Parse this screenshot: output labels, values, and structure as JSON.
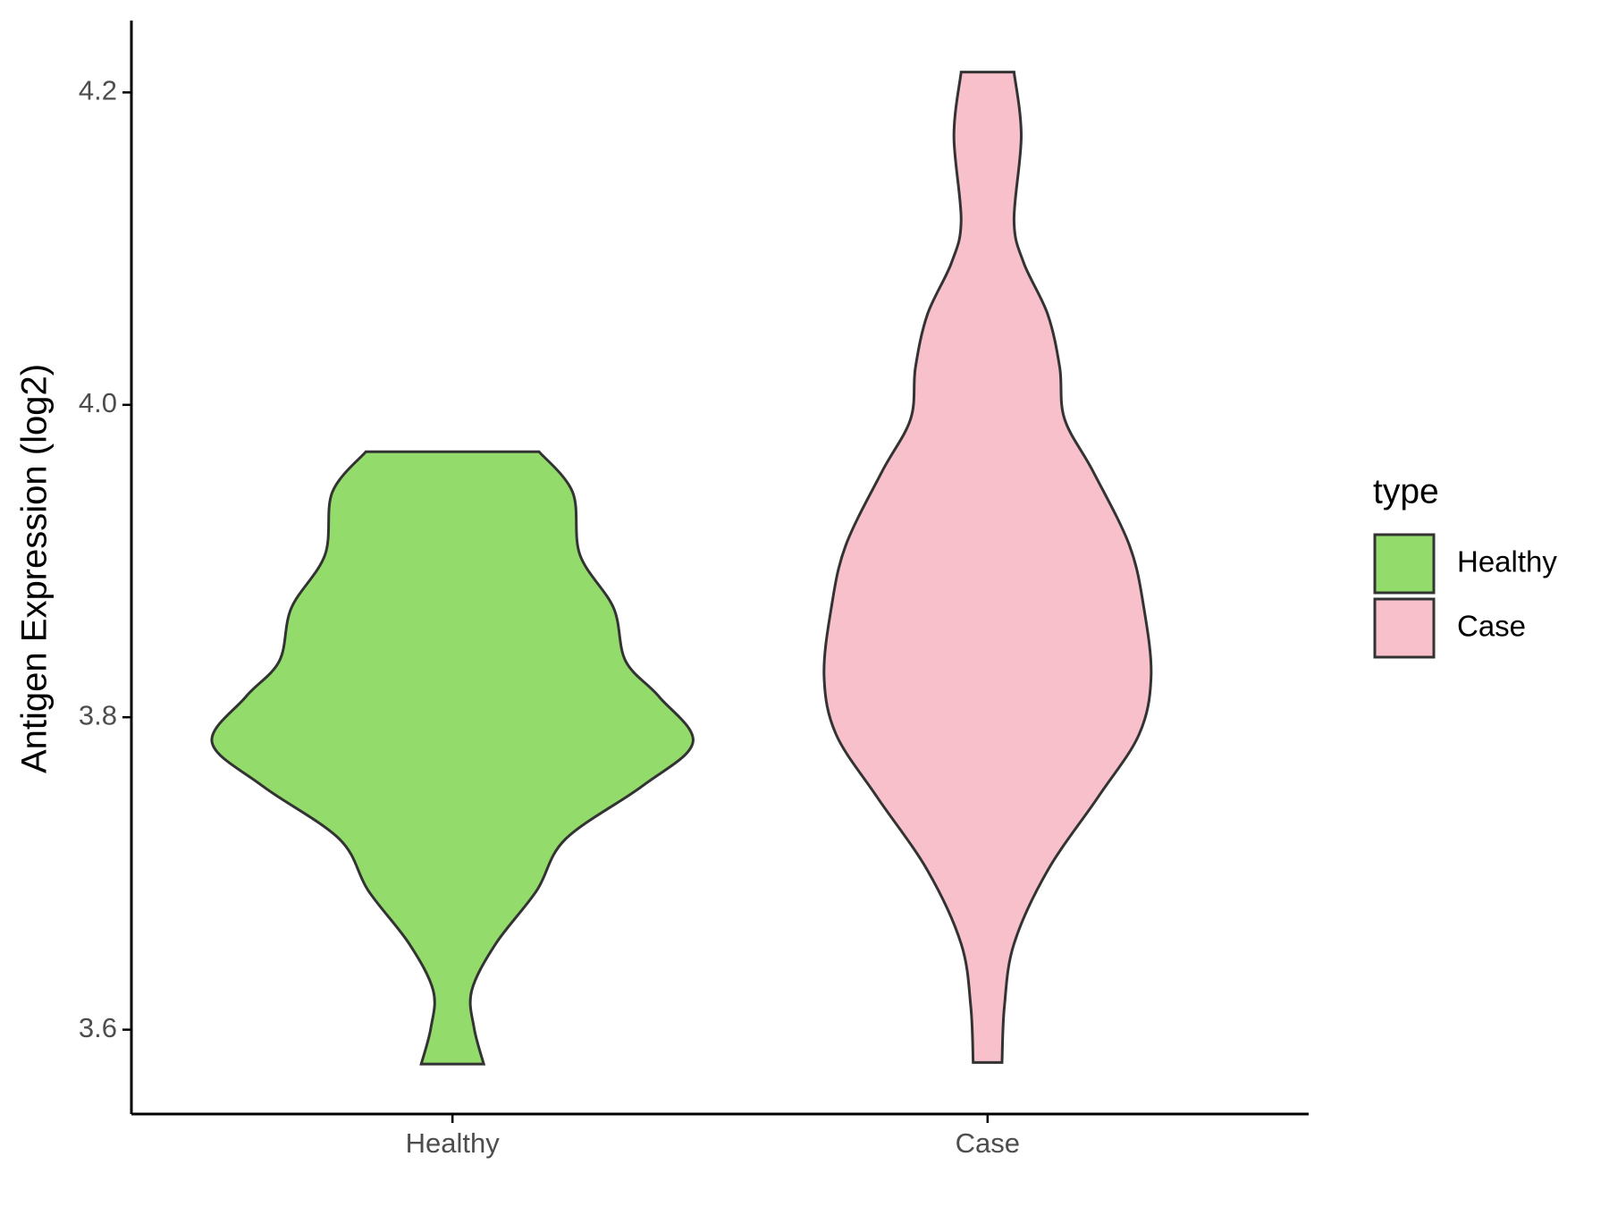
{
  "chart_data": {
    "type": "violin",
    "y_label": "Antigen Expression (log2)",
    "categories": [
      "Healthy",
      "Case"
    ],
    "series": [
      {
        "name": "Healthy",
        "color": "#93dc6c",
        "y": [
          3.97,
          3.944,
          3.904,
          3.87,
          3.836,
          3.813,
          3.784,
          3.756,
          3.722,
          3.689,
          3.655,
          3.625,
          3.601,
          3.578
        ],
        "width": [
          0.36,
          0.5,
          0.53,
          0.67,
          0.72,
          0.86,
          1.0,
          0.79,
          0.47,
          0.35,
          0.18,
          0.08,
          0.09,
          0.13
        ]
      },
      {
        "name": "Case",
        "color": "#f7c0cb",
        "y": [
          4.213,
          4.172,
          4.118,
          4.091,
          4.058,
          4.024,
          3.991,
          3.957,
          3.91,
          3.87,
          3.826,
          3.789,
          3.749,
          3.702,
          3.655,
          3.615,
          3.579
        ],
        "width": [
          0.11,
          0.14,
          0.11,
          0.15,
          0.25,
          0.3,
          0.32,
          0.44,
          0.59,
          0.65,
          0.68,
          0.63,
          0.46,
          0.25,
          0.11,
          0.07,
          0.06
        ]
      }
    ],
    "ylim": [
      3.546,
      4.246
    ],
    "yticks": [
      3.6,
      3.8,
      {
        "value": 4,
        "label": "4.0"
      },
      4.2
    ],
    "legend_title": "type",
    "legend": "right"
  }
}
